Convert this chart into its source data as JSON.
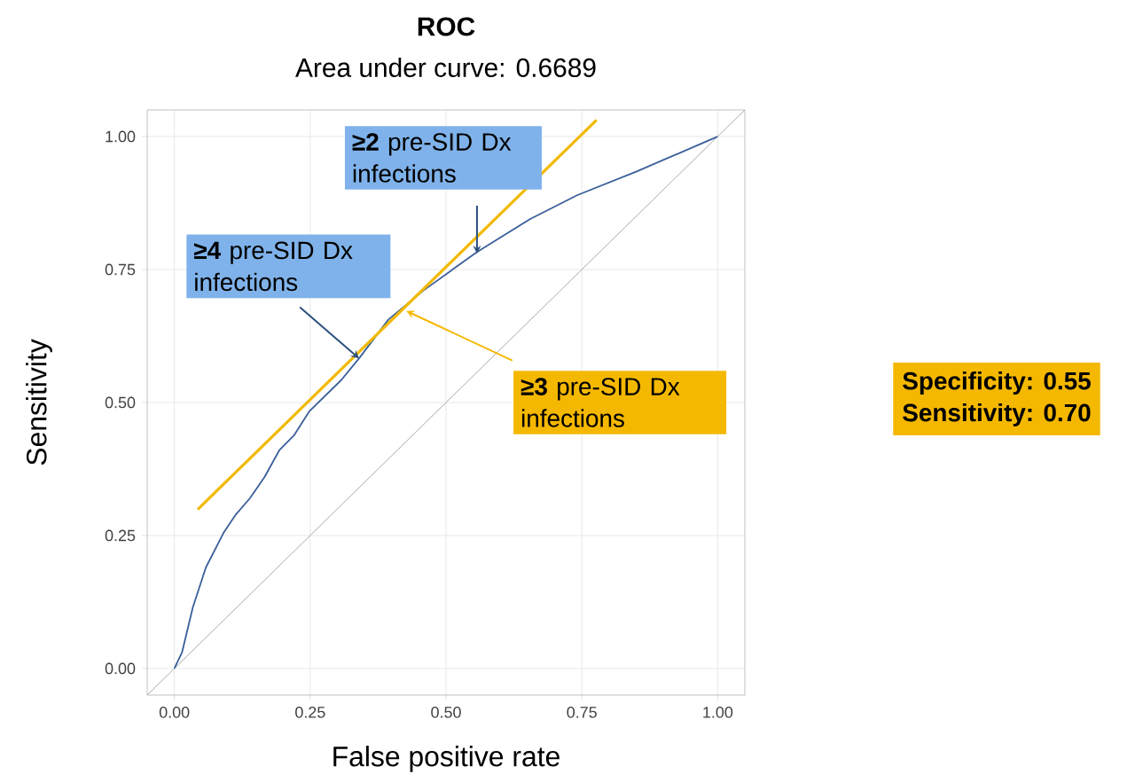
{
  "chart_data": {
    "type": "line",
    "title": "ROC",
    "subtitle": "Area under curve: 0.6689",
    "xlabel": "False positive rate",
    "ylabel": "Sensitivity",
    "xlim": [
      -0.05,
      1.05
    ],
    "ylim": [
      -0.05,
      1.05
    ],
    "xticks": [
      {
        "value": 0,
        "label": "0.00"
      },
      {
        "value": 0.25,
        "label": "0.25"
      },
      {
        "value": 0.5,
        "label": "0.50"
      },
      {
        "value": 0.75,
        "label": "0.75"
      },
      {
        "value": 1,
        "label": "1.00"
      }
    ],
    "yticks": [
      {
        "value": 0,
        "label": "0.00"
      },
      {
        "value": 0.25,
        "label": "0.25"
      },
      {
        "value": 0.5,
        "label": "0.50"
      },
      {
        "value": 0.75,
        "label": "0.75"
      },
      {
        "value": 1,
        "label": "1.00"
      }
    ],
    "grid": true,
    "marker": "none",
    "series": [
      {
        "color": "#aaaaaa",
        "x": [
          -0.05,
          1.05
        ],
        "values": [
          -0.05,
          1.05
        ]
      },
      {
        "color": "#3a5f9a",
        "x": [
          0,
          0.014,
          0.034,
          0.058,
          0.09,
          0.112,
          0.139,
          0.166,
          0.193,
          0.22,
          0.248,
          0.307,
          0.34,
          0.394,
          0.459,
          0.557,
          0.655,
          0.742,
          0.85,
          0.991,
          1
        ],
        "values": [
          0,
          0.03,
          0.115,
          0.19,
          0.254,
          0.288,
          0.32,
          0.36,
          0.41,
          0.438,
          0.483,
          0.542,
          0.583,
          0.656,
          0.711,
          0.783,
          0.845,
          0.89,
          0.934,
          0.996,
          1
        ]
      },
      {
        "color": "#f2b900",
        "x": [
          0.043,
          0.777
        ],
        "values": [
          0.299,
          1.031
        ]
      }
    ],
    "annotations": [
      {
        "text": "**≥2** pre-SID Dx infections",
        "x": 0.557,
        "y": 0.78
      },
      {
        "text": "**≥4** pre-SID Dx infections",
        "x": 0.34,
        "y": 0.583
      },
      {
        "text": "**≥3** pre-SID Dx infections",
        "x": 0.427,
        "y": 0.672
      },
      "Specificity: 0.55",
      "Sensitivity: 0.70"
    ]
  }
}
